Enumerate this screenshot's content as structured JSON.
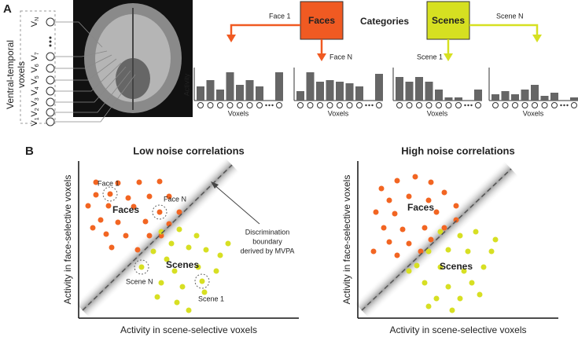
{
  "panel_a": {
    "label": "A",
    "voxel_axis_label": [
      "Ventral-temporal",
      "voxels"
    ],
    "voxels": [
      {
        "base": "V",
        "sub": "N"
      },
      {
        "base": "V",
        "sub": "7"
      },
      {
        "base": "V",
        "sub": "6"
      },
      {
        "base": "V",
        "sub": "5"
      },
      {
        "base": "V",
        "sub": "4"
      },
      {
        "base": "V",
        "sub": "3"
      },
      {
        "base": "V",
        "sub": "2"
      },
      {
        "base": "V",
        "sub": "1"
      }
    ],
    "faces": "Faces",
    "categories": "Categories",
    "scenes": "Scenes",
    "face_1": "Face 1",
    "face_n": "Face N",
    "scene_1": "Scene 1",
    "scene_n": "Scene N",
    "activity": "Activity",
    "voxels_axis": [
      "Voxels",
      "Voxels",
      "Voxels",
      "Voxels"
    ]
  },
  "panel_b": {
    "label": "B",
    "plots": [
      {
        "title": "Low noise correlations",
        "x_label": "Activity in scene-selective voxels",
        "y_label": "Activity in face-selective voxels",
        "faces": "Faces",
        "scenes": "Scenes"
      },
      {
        "title": "High noise correlations",
        "x_label": "Activity in scene-selective voxels",
        "y_label": "Activity in face-selective voxels",
        "faces": "Faces",
        "scenes": "Scenes"
      }
    ],
    "examples": {
      "face_1": "Face 1",
      "face_n": "Face N",
      "scene_n": "Scene N",
      "scene_1": "Scene 1"
    },
    "boundary_note": [
      "Discrimination",
      "boundary",
      "derived by MVPA"
    ]
  }
}
